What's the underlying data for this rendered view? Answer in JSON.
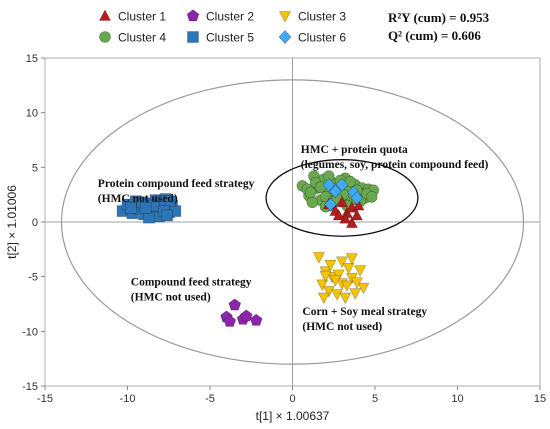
{
  "chart_data": {
    "type": "scatter",
    "xlabel": "t[1] × 1.00637",
    "ylabel": "t[2] × 1.01006",
    "xlim": [
      -15,
      15
    ],
    "ylim": [
      -15,
      15
    ],
    "x_ticks": [
      -15,
      -10,
      -5,
      0,
      5,
      10,
      15
    ],
    "y_ticks": [
      -15,
      -10,
      -5,
      0,
      5,
      10,
      15
    ],
    "grid": false,
    "legend_placement": "top",
    "statistics": [
      "R²Y (cum) = 0.953",
      "Q² (cum) = 0.606"
    ],
    "confidence_ellipse": {
      "center": [
        0,
        0
      ],
      "semi_axes": [
        14,
        13
      ]
    },
    "highlight_circle": {
      "center": [
        3,
        2.2
      ],
      "semi_axes": [
        4.6,
        3.5
      ]
    },
    "series": [
      {
        "name": "Cluster 1",
        "marker": "triangle-up",
        "color": "#b71c1c",
        "points": [
          [
            2.2,
            1.6
          ],
          [
            2.6,
            1.0
          ],
          [
            3.0,
            1.8
          ],
          [
            3.3,
            0.8
          ],
          [
            3.6,
            1.3
          ],
          [
            3.2,
            0.3
          ],
          [
            3.6,
            -0.1
          ],
          [
            2.8,
            0.6
          ],
          [
            4.0,
            1.5
          ],
          [
            3.9,
            0.6
          ]
        ]
      },
      {
        "name": "Cluster 2",
        "marker": "pentagon",
        "color": "#8e24aa",
        "points": [
          [
            -4.0,
            -8.7
          ],
          [
            -3.5,
            -7.6
          ],
          [
            -3.8,
            -9.1
          ],
          [
            -3.0,
            -8.9
          ],
          [
            -2.2,
            -9.0
          ],
          [
            -2.8,
            -8.6
          ]
        ]
      },
      {
        "name": "Cluster 3",
        "marker": "triangle-down",
        "color": "#f5c400",
        "points": [
          [
            1.6,
            -3.2
          ],
          [
            2.0,
            -4.5
          ],
          [
            2.4,
            -5.0
          ],
          [
            1.8,
            -5.7
          ],
          [
            2.2,
            -6.3
          ],
          [
            2.8,
            -4.8
          ],
          [
            3.0,
            -3.6
          ],
          [
            3.4,
            -4.2
          ],
          [
            3.6,
            -5.1
          ],
          [
            2.7,
            -6.6
          ],
          [
            3.2,
            -6.9
          ],
          [
            3.8,
            -6.5
          ],
          [
            3.0,
            -5.6
          ],
          [
            3.6,
            -3.3
          ],
          [
            4.1,
            -4.4
          ],
          [
            4.3,
            -6.0
          ],
          [
            2.3,
            -3.9
          ],
          [
            1.9,
            -6.9
          ],
          [
            3.9,
            -5.5
          ],
          [
            2.6,
            -5.3
          ],
          [
            3.3,
            -5.8
          ],
          [
            2.0,
            -4.9
          ]
        ]
      },
      {
        "name": "Cluster 4",
        "marker": "circle",
        "color": "#6aa84f",
        "points": [
          [
            0.6,
            3.3
          ],
          [
            1.0,
            2.4
          ],
          [
            1.3,
            4.2
          ],
          [
            1.5,
            3.1
          ],
          [
            1.7,
            2.0
          ],
          [
            1.9,
            3.9
          ],
          [
            2.1,
            2.9
          ],
          [
            2.3,
            1.5
          ],
          [
            2.4,
            3.6
          ],
          [
            2.6,
            2.4
          ],
          [
            2.8,
            3.2
          ],
          [
            3.0,
            1.9
          ],
          [
            3.2,
            4.0
          ],
          [
            3.4,
            2.8
          ],
          [
            3.6,
            2.0
          ],
          [
            3.8,
            3.4
          ],
          [
            4.0,
            2.5
          ],
          [
            4.2,
            3.1
          ],
          [
            4.4,
            2.2
          ],
          [
            4.6,
            3.0
          ],
          [
            1.2,
            1.8
          ],
          [
            2.0,
            2.3
          ],
          [
            3.1,
            2.5
          ],
          [
            1.4,
            3.6
          ],
          [
            2.9,
            3.8
          ],
          [
            3.7,
            2.5
          ],
          [
            4.9,
            2.9
          ],
          [
            2.5,
            1.9
          ],
          [
            0.9,
            3.0
          ],
          [
            3.3,
            1.5
          ],
          [
            4.1,
            1.9
          ],
          [
            1.7,
            3.2
          ],
          [
            2.2,
            4.2
          ],
          [
            3.5,
            3.7
          ],
          [
            4.5,
            2.6
          ],
          [
            2.7,
            2.1
          ],
          [
            1.1,
            2.7
          ],
          [
            3.9,
            2.9
          ],
          [
            2.0,
            1.4
          ],
          [
            4.8,
            2.3
          ]
        ]
      },
      {
        "name": "Cluster 5",
        "marker": "square",
        "color": "#2e75b6",
        "points": [
          [
            -10.3,
            1.0
          ],
          [
            -10.0,
            1.6
          ],
          [
            -9.7,
            0.8
          ],
          [
            -9.5,
            1.9
          ],
          [
            -9.3,
            1.2
          ],
          [
            -9.0,
            0.7
          ],
          [
            -8.8,
            1.7
          ],
          [
            -8.6,
            1.1
          ],
          [
            -8.3,
            2.0
          ],
          [
            -8.1,
            0.5
          ],
          [
            -7.9,
            1.4
          ],
          [
            -7.7,
            2.1
          ],
          [
            -7.5,
            0.9
          ],
          [
            -7.3,
            1.5
          ],
          [
            -7.1,
            1.0
          ],
          [
            -8.0,
            1.9
          ],
          [
            -8.7,
            0.4
          ],
          [
            -9.8,
            1.3
          ],
          [
            -7.4,
            1.9
          ],
          [
            -8.4,
            1.5
          ],
          [
            -9.1,
            1.8
          ],
          [
            -7.8,
            1.0
          ],
          [
            -8.9,
            1.3
          ],
          [
            -7.6,
            0.6
          ]
        ]
      },
      {
        "name": "Cluster 6",
        "marker": "diamond",
        "color": "#3fa9f5",
        "points": [
          [
            2.2,
            3.4
          ],
          [
            2.6,
            2.8
          ],
          [
            2.3,
            1.6
          ],
          [
            3.0,
            3.4
          ],
          [
            3.7,
            2.7
          ],
          [
            3.9,
            2.2
          ]
        ]
      }
    ],
    "annotations": [
      {
        "lines": [
          "Protein compound feed strategy",
          "(HMC not used)"
        ],
        "anchor": [
          -11.8,
          3.2
        ]
      },
      {
        "lines": [
          "HMC + protein quota",
          "(legumes, soy, protein compound feed)"
        ],
        "anchor": [
          0.5,
          6.3
        ]
      },
      {
        "lines": [
          "Compound feed strategy",
          "(HMC not used)"
        ],
        "anchor": [
          -9.8,
          -5.8
        ]
      },
      {
        "lines": [
          "Corn + Soy meal strategy",
          "(HMC not used)"
        ],
        "anchor": [
          0.6,
          -8.5
        ]
      }
    ]
  }
}
